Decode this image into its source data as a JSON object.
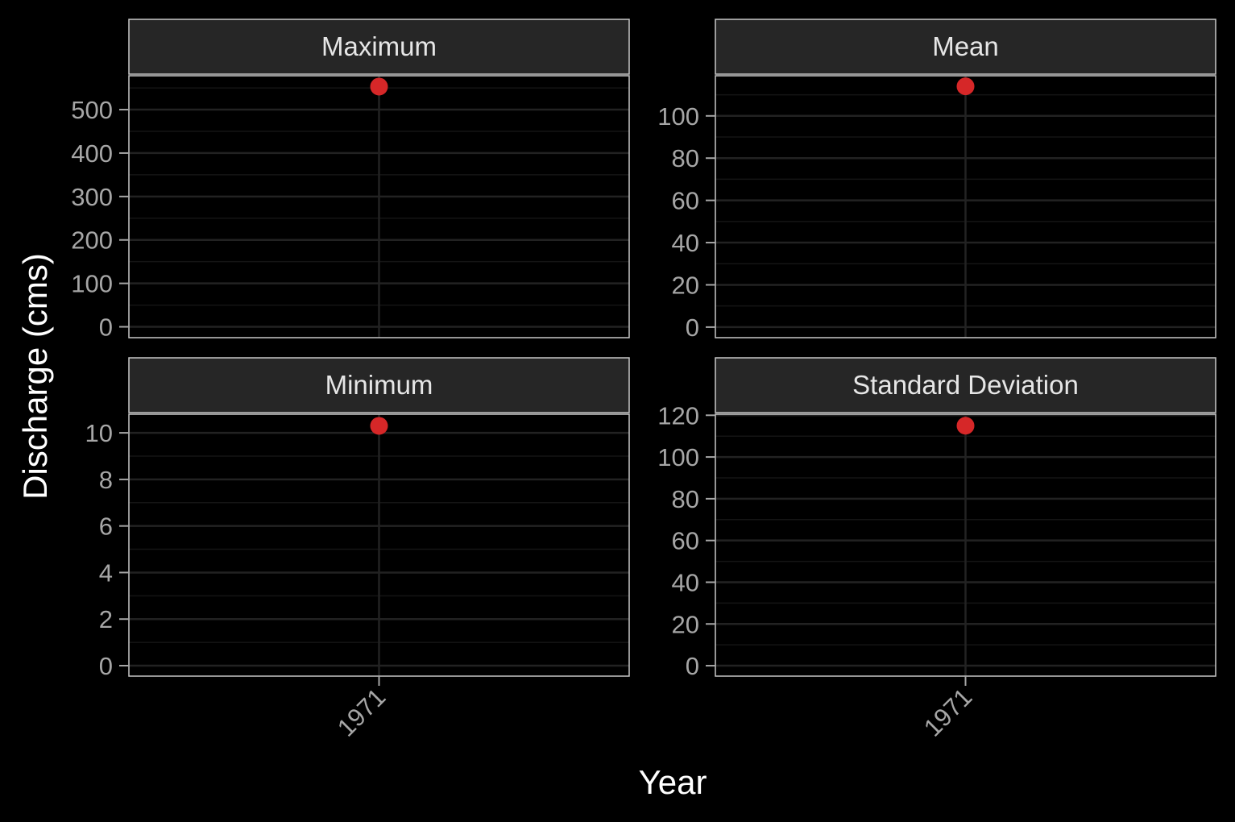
{
  "chart_data": {
    "type": "scatter",
    "xlabel": "Year",
    "ylabel": "Discharge (cms)",
    "x_categories": [
      "1971"
    ],
    "colors": {
      "background": "#000000",
      "panel_background": "#000000",
      "strip_background": "#262626",
      "strip_border": "#c8c8c8",
      "panel_border": "#c8c8c8",
      "grid_major": "#222222",
      "grid_minor": "#141414",
      "point": "#d62728",
      "tick_text": "#a6a6a6",
      "strip_text": "#e6e6e6",
      "axis_title": "#ffffff"
    },
    "panels": [
      {
        "title": "Maximum",
        "x": [
          "1971"
        ],
        "y": [
          553
        ],
        "ylim": [
          -25,
          578
        ],
        "yticks": [
          0,
          100,
          200,
          300,
          400,
          500
        ],
        "ytick_labels": [
          "0",
          "100",
          "200",
          "300",
          "400",
          "500"
        ],
        "show_x_ticks": false
      },
      {
        "title": "Mean",
        "x": [
          "1971"
        ],
        "y": [
          114
        ],
        "ylim": [
          -5,
          119
        ],
        "yticks": [
          0,
          20,
          40,
          60,
          80,
          100
        ],
        "ytick_labels": [
          "0",
          "20",
          "40",
          "60",
          "80",
          "100"
        ],
        "show_x_ticks": false
      },
      {
        "title": "Minimum",
        "x": [
          "1971"
        ],
        "y": [
          10.3
        ],
        "ylim": [
          -0.45,
          10.8
        ],
        "yticks": [
          0,
          2,
          4,
          6,
          8,
          10
        ],
        "ytick_labels": [
          "0",
          "2",
          "4",
          "6",
          "8",
          "10"
        ],
        "show_x_ticks": true
      },
      {
        "title": "Standard Deviation",
        "x": [
          "1971"
        ],
        "y": [
          115
        ],
        "ylim": [
          -5,
          120.5
        ],
        "yticks": [
          0,
          20,
          40,
          60,
          80,
          100,
          120
        ],
        "ytick_labels": [
          "0",
          "20",
          "40",
          "60",
          "80",
          "100",
          "120"
        ],
        "show_x_ticks": true
      }
    ]
  }
}
